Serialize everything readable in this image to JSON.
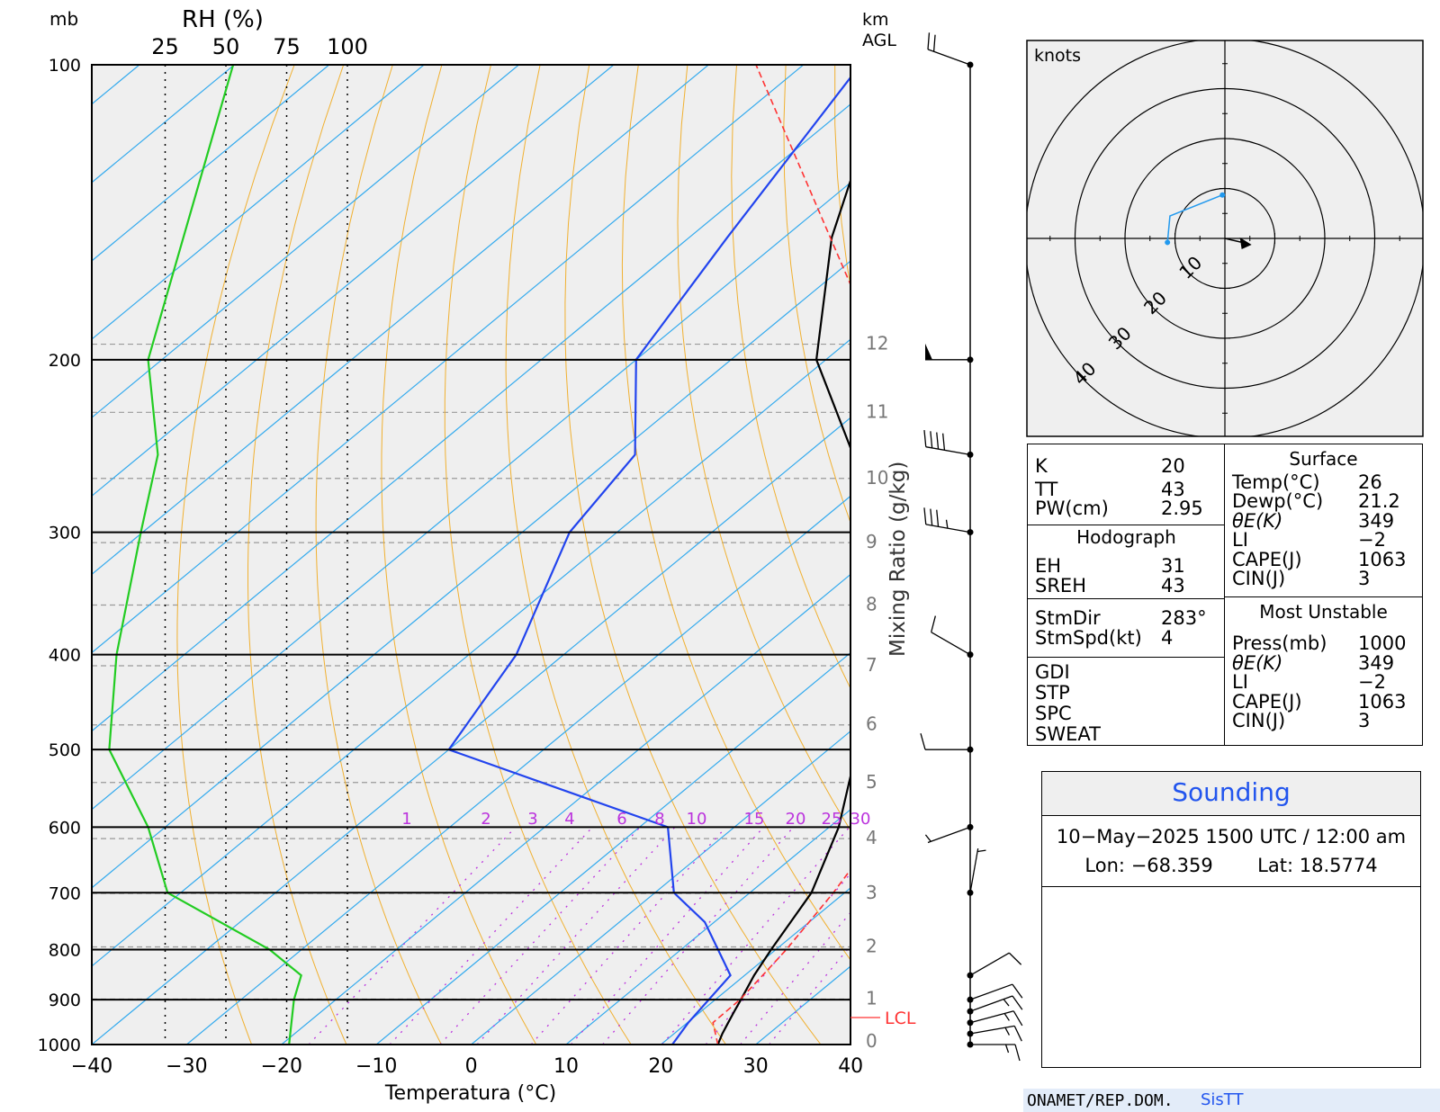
{
  "diagram": {
    "pressure_unit": "mb",
    "rh_label": "RH (%)",
    "rh_ticks": [
      "25",
      "50",
      "75",
      "100"
    ],
    "height_label_line1": "km",
    "height_label_line2": "AGL",
    "x_axis_label": "Temperatura (°C)",
    "mixing_ratio_label": "Mixing Ratio (g/kg)",
    "lcl_label": "LCL",
    "pressure_ticks": [
      "100",
      "200",
      "300",
      "400",
      "500",
      "600",
      "700",
      "800",
      "900",
      "1000"
    ],
    "temperature_ticks": [
      "−40",
      "−30",
      "−20",
      "−10",
      "0",
      "10",
      "20",
      "30",
      "40"
    ],
    "height_ticks": [
      "0",
      "1",
      "2",
      "3",
      "4",
      "5",
      "6",
      "7",
      "8",
      "9",
      "10",
      "11",
      "12"
    ],
    "mixing_ratio_ticks": [
      "1",
      "2",
      "3",
      "4",
      "6",
      "8",
      "10",
      "15",
      "20",
      "25",
      "30"
    ]
  },
  "chart_data": [
    {
      "type": "line",
      "title": "",
      "xlabel": "Temperatura (°C)",
      "ylabel": "mb",
      "xlim": [
        -40,
        40
      ],
      "ylim": [
        1000,
        100
      ],
      "yscale": "log",
      "grid": true,
      "series": [
        {
          "color": "#000000",
          "style": "solid",
          "pressure": [
            1000,
            975,
            950,
            925,
            900,
            850,
            800,
            700,
            600,
            500,
            400,
            300,
            250,
            200,
            150,
            100
          ],
          "value": [
            26.0,
            25.1,
            24.3,
            23.5,
            22.7,
            21.0,
            19.5,
            16.5,
            11.0,
            3.0,
            -8.0,
            -24.0,
            -35.0,
            -51.0,
            -65.0,
            -81.0
          ]
        },
        {
          "color": "#2244ee",
          "style": "solid",
          "pressure": [
            1000,
            950,
            850,
            750,
            700,
            600,
            500,
            400,
            300,
            250,
            200,
            150,
            100
          ],
          "value": [
            21.2,
            20.1,
            18.5,
            9.0,
            2.0,
            -7.0,
            -40.0,
            -45.0,
            -55.0,
            -58.0,
            -70.0,
            -76.0,
            -84.0
          ]
        },
        {
          "color": "#ff3333",
          "style": "dashed",
          "pressure": [
            1000,
            950,
            900,
            850,
            800,
            700,
            600,
            500,
            400,
            300,
            200,
            100
          ],
          "value": [
            26.0,
            22.7,
            22.6,
            21.9,
            21.1,
            18.8,
            15.6,
            10.5,
            2.5,
            -12.5,
            -44.0,
            -95.0
          ]
        },
        {
          "color": "#22cc22",
          "style": "solid",
          "pressure": [
            1000,
            900,
            850,
            800,
            700,
            600,
            500,
            400,
            300,
            250,
            200,
            100
          ],
          "value": [
            76,
            78,
            81,
            68,
            26,
            18,
            2,
            5,
            15,
            22,
            18,
            53
          ]
        }
      ]
    },
    {
      "type": "scatter",
      "title": "knots",
      "rings": [
        10,
        20,
        30,
        40
      ],
      "points": [
        {
          "u": -11.5,
          "v": -0.8
        },
        {
          "u": -11.0,
          "v": 4.5
        },
        {
          "u": -0.5,
          "v": 8.7
        }
      ],
      "storm_motion": {
        "direction_deg": 283,
        "speed_kt": 4
      }
    },
    {
      "type": "table",
      "wind_barbs": [
        {
          "pressure": 1000,
          "direction_deg": 90,
          "speed_kt": 15
        },
        {
          "pressure": 975,
          "direction_deg": 80,
          "speed_kt": 15
        },
        {
          "pressure": 950,
          "direction_deg": 75,
          "speed_kt": 15
        },
        {
          "pressure": 925,
          "direction_deg": 70,
          "speed_kt": 15
        },
        {
          "pressure": 900,
          "direction_deg": 70,
          "speed_kt": 10
        },
        {
          "pressure": 850,
          "direction_deg": 60,
          "speed_kt": 10
        },
        {
          "pressure": 700,
          "direction_deg": 10,
          "speed_kt": 5
        },
        {
          "pressure": 600,
          "direction_deg": 250,
          "speed_kt": 5
        },
        {
          "pressure": 500,
          "direction_deg": 270,
          "speed_kt": 10
        },
        {
          "pressure": 400,
          "direction_deg": 300,
          "speed_kt": 10
        },
        {
          "pressure": 300,
          "direction_deg": 280,
          "speed_kt": 35
        },
        {
          "pressure": 250,
          "direction_deg": 280,
          "speed_kt": 40
        },
        {
          "pressure": 200,
          "direction_deg": 270,
          "speed_kt": 50
        },
        {
          "pressure": 100,
          "direction_deg": 290,
          "speed_kt": 20
        }
      ]
    }
  ],
  "indices": {
    "k_label": "K",
    "k_value": "20",
    "tt_label": "TT",
    "tt_value": "43",
    "pw_label": "PW(cm)",
    "pw_value": "2.95",
    "hodograph_title": "Hodograph",
    "eh_label": "EH",
    "eh_value": "31",
    "sreh_label": "SREH",
    "sreh_value": "43",
    "stmdir_label": "StmDir",
    "stmdir_value": "283°",
    "stmspd_label": "StmSpd(kt)",
    "stmspd_value": "4",
    "gdi_label": "GDI",
    "stp_label": "STP",
    "spc_label": "SPC",
    "sweat_label": "SWEAT",
    "surface_title": "Surface",
    "surface_temp_label": "Temp(°C)",
    "surface_temp_value": "26",
    "surface_dewp_label": "Dewp(°C)",
    "surface_dewp_value": "21.2",
    "surface_thetae_label": "θE(K)",
    "surface_thetae_value": "349",
    "surface_li_label": "LI",
    "surface_li_value": "−2",
    "surface_cape_label": "CAPE(J)",
    "surface_cape_value": "1063",
    "surface_cin_label": "CIN(J)",
    "surface_cin_value": "3",
    "mu_title": "Most Unstable",
    "mu_press_label": "Press(mb)",
    "mu_press_value": "1000",
    "mu_thetae_label": "θE(K)",
    "mu_thetae_value": "349",
    "mu_li_label": "LI",
    "mu_li_value": "−2",
    "mu_cape_label": "CAPE(J)",
    "mu_cape_value": "1063",
    "mu_cin_label": "CIN(J)",
    "mu_cin_value": "3"
  },
  "sounding": {
    "title": "Sounding",
    "datetime": "10−May−2025 1500 UTC / 12:00 am",
    "lon_label": "Lon:",
    "lon_value": "−68.359",
    "lat_label": "Lat:",
    "lat_value": "18.5774"
  },
  "footer": {
    "org": "ONAMET/REP.DOM.",
    "brand": "SisTT"
  },
  "colors": {
    "temperature": "#000000",
    "dewpoint": "#2244ee",
    "parcel": "#ff3333",
    "rh": "#22cc22",
    "isotherms": "#33aaee",
    "dry_adiabats": "#f0b030",
    "mixing_ratio": "#bb33dd",
    "sounding_title": "#2255ee",
    "footer_brand": "#2255ee"
  }
}
